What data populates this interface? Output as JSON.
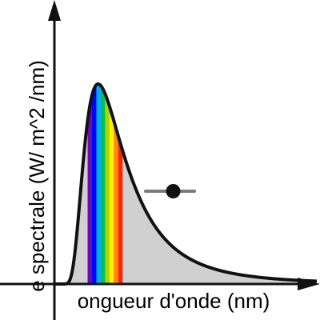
{
  "chart_data": {
    "type": "area",
    "xlabel": "ongueur d'onde (nm)",
    "ylabel": "e spectrale (W/ m^2 /nm)",
    "x_range": [
      0,
      3000
    ],
    "y_range": [
      0,
      1.2
    ],
    "peak_wavelength_nm": 500,
    "visible_band_nm": [
      380,
      780
    ],
    "slider": {
      "value": 0.5,
      "min": 0,
      "max": 1
    },
    "grid": false,
    "legend": "none"
  },
  "colors": {
    "curve": "#111111",
    "fill": "#d0d0d0",
    "axes": "#111111",
    "slider_track": "#7a7a7a",
    "slider_knob": "#111111",
    "spectrum": [
      "#6a0dad",
      "#0000ff",
      "#00aaff",
      "#00c060",
      "#a8d800",
      "#ffee00",
      "#ff8800",
      "#ff2200"
    ]
  }
}
